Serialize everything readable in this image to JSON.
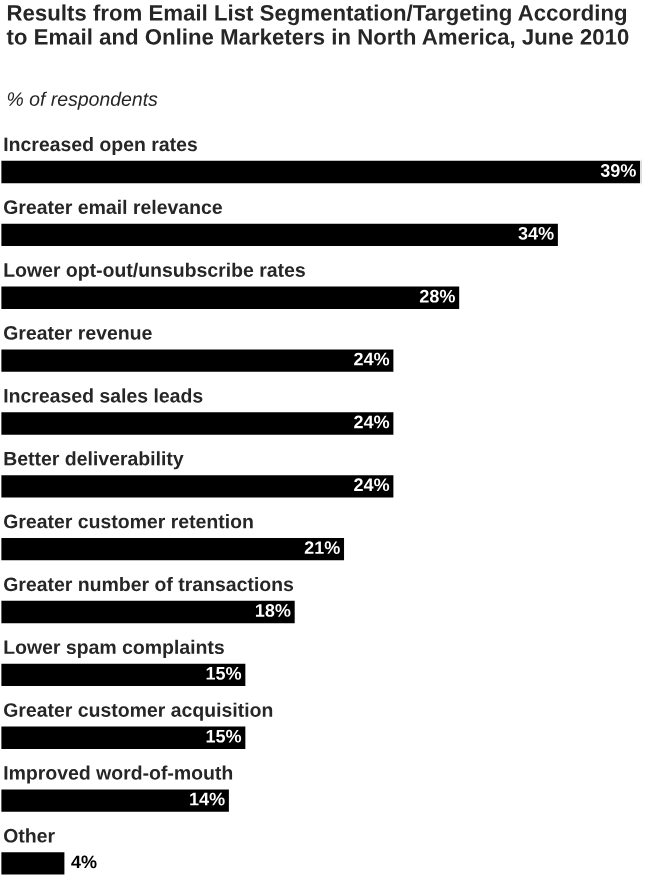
{
  "chart_data": {
    "type": "bar",
    "orientation": "horizontal",
    "title": "Results from Email List Segmentation/Targeting According to Email and Online Marketers in North America, June 2010",
    "subtitle": "% of respondents",
    "categories": [
      "Increased open rates",
      "Greater email relevance",
      "Lower opt-out/unsubscribe rates",
      "Greater revenue",
      "Increased sales leads",
      "Better deliverability",
      "Greater customer retention",
      "Greater number of transactions",
      "Lower spam complaints",
      "Greater customer acquisition",
      "Improved word-of-mouth",
      "Other"
    ],
    "values": [
      39,
      34,
      28,
      24,
      24,
      24,
      21,
      18,
      15,
      15,
      14,
      4
    ],
    "value_labels": [
      "39%",
      "34%",
      "28%",
      "24%",
      "24%",
      "24%",
      "21%",
      "18%",
      "15%",
      "15%",
      "14%",
      "4%"
    ],
    "color": "#000000"
  }
}
